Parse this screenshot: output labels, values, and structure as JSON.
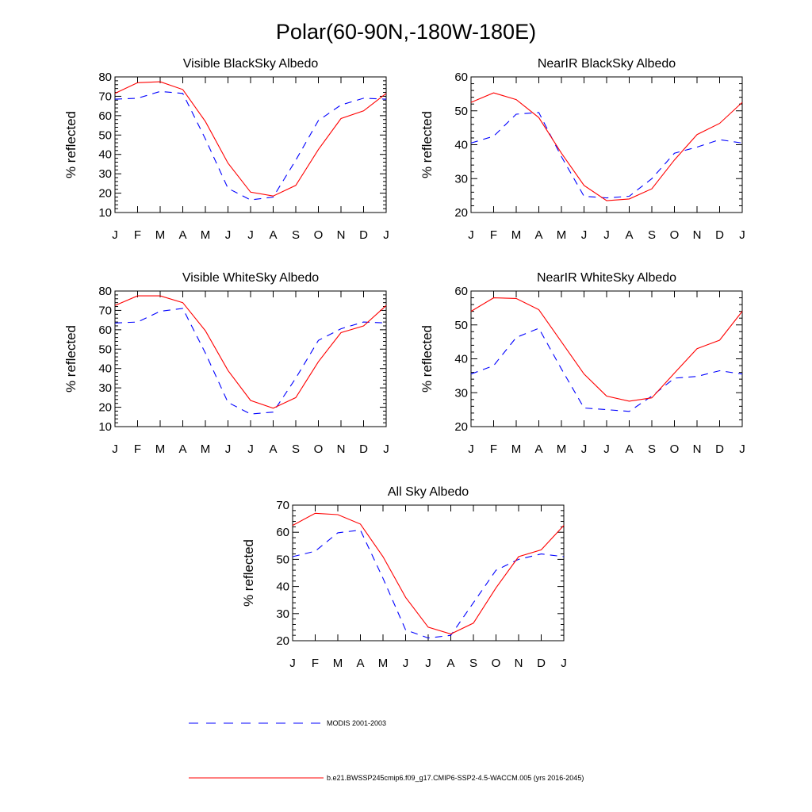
{
  "figure": {
    "title": "Polar(60-90N,-180W-180E)"
  },
  "legend": [
    {
      "label": "MODIS 2001-2003",
      "color": "#0000ff",
      "dash": "dashed"
    },
    {
      "label": "b.e21.BWSSP245cmip6.f09_g17.CMIP6-SSP2-4.5-WACCM.005 (yrs 2016-2045)",
      "color": "#ff0000",
      "dash": "solid"
    }
  ],
  "chart_data": [
    {
      "type": "line",
      "title": "Visible BlackSky Albedo",
      "xlabel": "",
      "ylabel": "% reflected",
      "ylim": [
        10,
        80
      ],
      "yticks": [
        10,
        20,
        30,
        40,
        50,
        60,
        70,
        80
      ],
      "categories": [
        "J",
        "F",
        "M",
        "A",
        "M",
        "J",
        "J",
        "A",
        "S",
        "O",
        "N",
        "D",
        "J"
      ],
      "series": [
        {
          "name": "MODIS 2001-2003",
          "values": [
            68.5,
            69,
            72.5,
            71.5,
            48,
            22.5,
            16.5,
            18,
            37,
            57.5,
            65.5,
            69,
            68.5
          ]
        },
        {
          "name": "b.e21.BWSSP245cmip6.f09_g17.CMIP6-SSP2-4.5-WACCM.005 (yrs 2016-2045)",
          "values": [
            71.5,
            77,
            77.5,
            73.5,
            57,
            35.5,
            20.5,
            18.5,
            24,
            42.5,
            58.5,
            62.5,
            71.5
          ]
        }
      ]
    },
    {
      "type": "line",
      "title": "NearIR BlackSky Albedo",
      "xlabel": "",
      "ylabel": "% reflected",
      "ylim": [
        20,
        60
      ],
      "yticks": [
        20,
        30,
        40,
        50,
        60
      ],
      "categories": [
        "J",
        "F",
        "M",
        "A",
        "M",
        "J",
        "J",
        "A",
        "S",
        "O",
        "N",
        "D",
        "J"
      ],
      "series": [
        {
          "name": "MODIS 2001-2003",
          "values": [
            40.5,
            42.5,
            49,
            49.5,
            36.5,
            24.8,
            24.3,
            24.8,
            30,
            37.5,
            39.3,
            41.5,
            40.5
          ]
        },
        {
          "name": "b.e21.BWSSP245cmip6.f09_g17.CMIP6-SSP2-4.5-WACCM.005 (yrs 2016-2045)",
          "values": [
            52.5,
            55.3,
            53.3,
            48,
            37.5,
            28,
            23.5,
            24,
            27,
            35.5,
            43,
            46.3,
            52.5
          ]
        }
      ]
    },
    {
      "type": "line",
      "title": "Visible WhiteSky Albedo",
      "xlabel": "",
      "ylabel": "% reflected",
      "ylim": [
        10,
        80
      ],
      "yticks": [
        10,
        20,
        30,
        40,
        50,
        60,
        70,
        80
      ],
      "categories": [
        "J",
        "F",
        "M",
        "A",
        "M",
        "J",
        "J",
        "A",
        "S",
        "O",
        "N",
        "D",
        "J"
      ],
      "series": [
        {
          "name": "MODIS 2001-2003",
          "values": [
            63.5,
            64,
            69.5,
            71,
            48,
            22.5,
            16.5,
            17.5,
            35,
            54.5,
            60.5,
            64,
            63.5
          ]
        },
        {
          "name": "b.e21.BWSSP245cmip6.f09_g17.CMIP6-SSP2-4.5-WACCM.005 (yrs 2016-2045)",
          "values": [
            72.5,
            77.5,
            77.5,
            74,
            59.5,
            39,
            23.5,
            19.5,
            25,
            43.5,
            58.5,
            62,
            72.5
          ]
        }
      ]
    },
    {
      "type": "line",
      "title": "NearIR WhiteSky Albedo",
      "xlabel": "",
      "ylabel": "% reflected",
      "ylim": [
        20,
        60
      ],
      "yticks": [
        20,
        30,
        40,
        50,
        60
      ],
      "categories": [
        "J",
        "F",
        "M",
        "A",
        "M",
        "J",
        "J",
        "A",
        "S",
        "O",
        "N",
        "D",
        "J"
      ],
      "series": [
        {
          "name": "MODIS 2001-2003",
          "values": [
            35.5,
            38,
            46.3,
            49,
            37,
            25.5,
            25,
            24.5,
            29,
            34.3,
            34.8,
            36.5,
            35.5
          ]
        },
        {
          "name": "b.e21.BWSSP245cmip6.f09_g17.CMIP6-SSP2-4.5-WACCM.005 (yrs 2016-2045)",
          "values": [
            54,
            58,
            57.8,
            54.5,
            45,
            35.5,
            29,
            27.5,
            28.5,
            35.8,
            43,
            45.5,
            54
          ]
        }
      ]
    },
    {
      "type": "line",
      "title": "All Sky Albedo",
      "xlabel": "",
      "ylabel": "% reflected",
      "ylim": [
        20,
        70
      ],
      "yticks": [
        20,
        30,
        40,
        50,
        60,
        70
      ],
      "categories": [
        "J",
        "F",
        "M",
        "A",
        "M",
        "J",
        "J",
        "A",
        "S",
        "O",
        "N",
        "D",
        "J"
      ],
      "series": [
        {
          "name": "MODIS 2001-2003",
          "values": [
            51,
            53,
            59.8,
            60.8,
            43,
            24,
            21,
            22,
            34,
            46,
            50,
            52,
            51
          ]
        },
        {
          "name": "b.e21.BWSSP245cmip6.f09_g17.CMIP6-SSP2-4.5-WACCM.005 (yrs 2016-2045)",
          "values": [
            62.5,
            67,
            66.5,
            63,
            51,
            36,
            25,
            22.5,
            26.5,
            39.5,
            51,
            53.5,
            62.5
          ]
        }
      ]
    }
  ]
}
